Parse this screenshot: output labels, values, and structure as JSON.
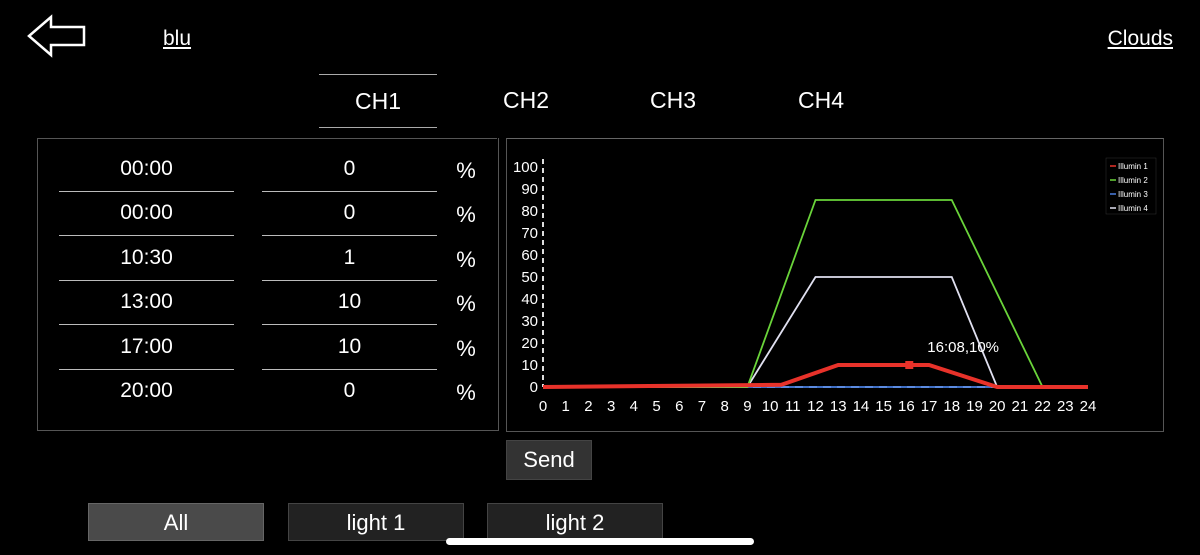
{
  "header": {
    "back_icon": "left-arrow-icon",
    "profile_name": "blu",
    "mode_link": "Clouds"
  },
  "tabs": [
    {
      "label": "CH1",
      "active": true
    },
    {
      "label": "CH2",
      "active": false
    },
    {
      "label": "CH3",
      "active": false
    },
    {
      "label": "CH4",
      "active": false
    }
  ],
  "schedule": {
    "unit": "%",
    "rows": [
      {
        "time": "00:00",
        "value": "0"
      },
      {
        "time": "00:00",
        "value": "0"
      },
      {
        "time": "10:30",
        "value": "1"
      },
      {
        "time": "13:00",
        "value": "10"
      },
      {
        "time": "17:00",
        "value": "10"
      },
      {
        "time": "20:00",
        "value": "0"
      }
    ]
  },
  "chart_data": {
    "type": "line",
    "xlim": [
      0,
      24
    ],
    "ylim": [
      0,
      100
    ],
    "x_ticks": [
      "0",
      "1",
      "2",
      "3",
      "4",
      "5",
      "6",
      "7",
      "8",
      "9",
      "10",
      "11",
      "12",
      "13",
      "14",
      "15",
      "16",
      "17",
      "18",
      "19",
      "20",
      "21",
      "22",
      "23",
      "24"
    ],
    "y_ticks": [
      "0",
      "10",
      "20",
      "30",
      "40",
      "50",
      "60",
      "70",
      "80",
      "90",
      "100"
    ],
    "legend_placement": "top-right",
    "series": [
      {
        "name": "Illumin 1",
        "color": "#e8322a",
        "points": [
          [
            0,
            0
          ],
          [
            10.5,
            1
          ],
          [
            13,
            10
          ],
          [
            17,
            10
          ],
          [
            20,
            0
          ],
          [
            24,
            0
          ]
        ]
      },
      {
        "name": "Illumin 2",
        "color": "#6ad43a",
        "points": [
          [
            0,
            0
          ],
          [
            9,
            0
          ],
          [
            12,
            85
          ],
          [
            18,
            85
          ],
          [
            22,
            0
          ],
          [
            24,
            0
          ]
        ]
      },
      {
        "name": "Illumin 3",
        "color": "#4a7fe0",
        "points": [
          [
            0,
            0
          ],
          [
            24,
            0
          ]
        ]
      },
      {
        "name": "Illumin 4",
        "color": "#e0e0f0",
        "points": [
          [
            0,
            0
          ],
          [
            9,
            0
          ],
          [
            12,
            50
          ],
          [
            18,
            50
          ],
          [
            20,
            0
          ],
          [
            24,
            0
          ]
        ]
      }
    ],
    "marker": {
      "x": 16.13,
      "y": 10,
      "label": "16:08,10%"
    }
  },
  "actions": {
    "send_label": "Send"
  },
  "groups": [
    {
      "label": "All",
      "selected": true
    },
    {
      "label": "light 1",
      "selected": false
    },
    {
      "label": "light 2",
      "selected": false
    }
  ]
}
